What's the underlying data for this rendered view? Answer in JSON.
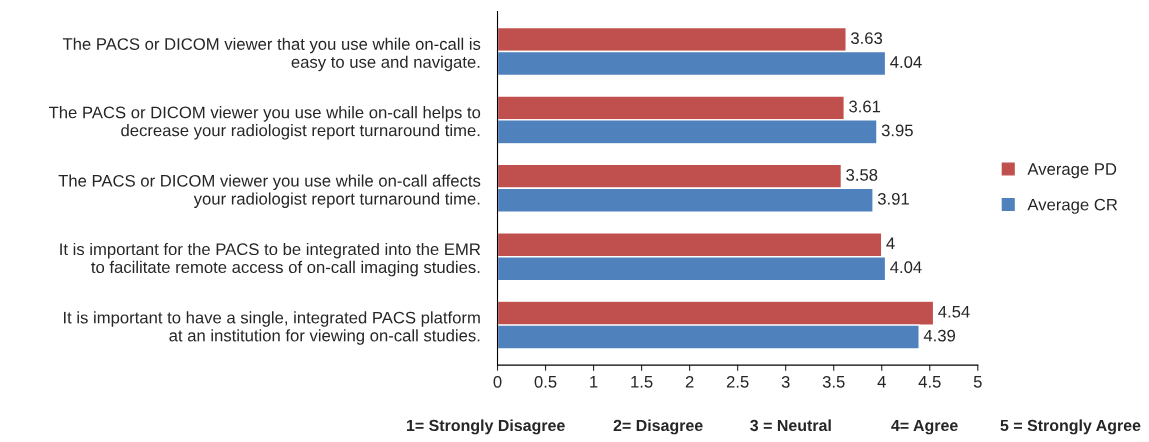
{
  "chart_data": {
    "type": "bar",
    "orientation": "horizontal",
    "categories": [
      "The PACS or DICOM viewer that you use while on-call is\neasy to use and navigate.",
      "The PACS or DICOM viewer you use while on-call helps to\ndecrease your radiologist report turnaround time.",
      "The PACS or DICOM viewer you use while on-call affects\nyour radiologist report turnaround time.",
      "It is important for the PACS to be integrated into the EMR\nto facilitate remote access of on-call imaging studies.",
      "It is important to have a single, integrated PACS platform\nat an institution for viewing on-call studies."
    ],
    "series": [
      {
        "name": "Average PD",
        "color": "#c0504d",
        "values": [
          3.63,
          3.61,
          3.58,
          4,
          4.54
        ]
      },
      {
        "name": "Average CR",
        "color": "#4f81bd",
        "values": [
          4.04,
          3.95,
          3.91,
          4.04,
          4.39
        ]
      }
    ],
    "xlim": [
      0,
      5
    ],
    "xticks": [
      0,
      0.5,
      1,
      1.5,
      2,
      2.5,
      3,
      3.5,
      4,
      4.5,
      5
    ],
    "data_labels": true,
    "legend": "right",
    "grid": false,
    "annotations": [
      "1= Strongly Disagree",
      "2= Disagree",
      "3 = Neutral",
      "4= Agree",
      "5 = Strongly Agree"
    ]
  }
}
